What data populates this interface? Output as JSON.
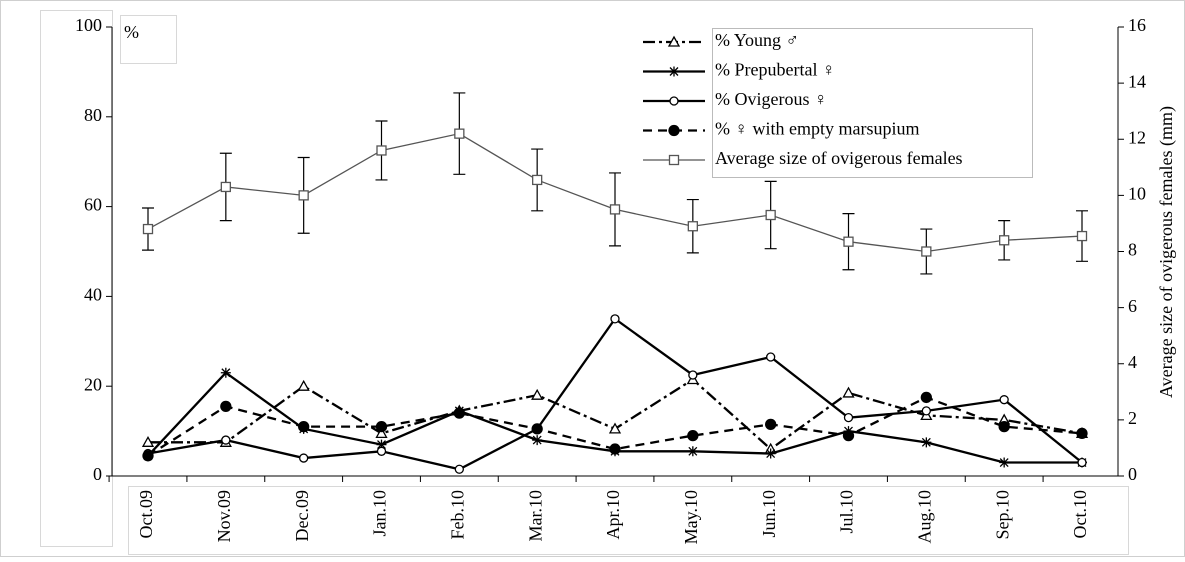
{
  "chart_data": {
    "type": "line",
    "y_label": "%",
    "y2_label": "Average size of ovigerous females  (mm)",
    "categories": [
      "Oct.09",
      "Nov.09",
      "Dec.09",
      "Jan.10",
      "Feb.10",
      "Mar.10",
      "Apr.10",
      "May.10",
      "Jun.10",
      "Jul.10",
      "Aug.10",
      "Sep.10",
      "Oct.10"
    ],
    "ylim": [
      0,
      100
    ],
    "yticks": [
      0,
      20,
      40,
      60,
      80,
      100
    ],
    "y2lim": [
      0,
      16
    ],
    "y2ticks": [
      0,
      2,
      4,
      6,
      8,
      10,
      12,
      14,
      16
    ],
    "series": [
      {
        "name": "% Young ♂",
        "color": "#000000",
        "marker": "triangle",
        "dash": "12 4 3 4",
        "values": [
          7.5,
          7.5,
          20,
          9.5,
          14.5,
          18,
          10.5,
          21.5,
          6,
          18.5,
          13.5,
          12.5,
          9.5
        ]
      },
      {
        "name": "% Prepubertal ♀",
        "color": "#000000",
        "marker": "asterisk",
        "dash": "none",
        "values": [
          4.5,
          23,
          10.5,
          7,
          14.5,
          8,
          5.5,
          5.5,
          5,
          10,
          7.5,
          3,
          3
        ]
      },
      {
        "name": " % Ovigerous ♀",
        "color": "#000000",
        "marker": "circle",
        "dash": "none",
        "values": [
          5,
          8,
          4,
          5.5,
          1.5,
          10.5,
          35,
          22.5,
          26.5,
          13,
          14.5,
          17,
          3
        ]
      },
      {
        "name": "% ♀ with empty marsupium",
        "color": "#000000",
        "marker": "dot",
        "dash": "9 6",
        "values": [
          4.5,
          15.5,
          11,
          11,
          14,
          10.5,
          6,
          9,
          11.5,
          9,
          17.5,
          11,
          9.5
        ]
      },
      {
        "name": "Average size of ovigerous females",
        "color": "#555555",
        "marker": "square",
        "dash": "none",
        "axis": "y2",
        "values": [
          8.8,
          10.3,
          10.0,
          11.6,
          12.2,
          10.55,
          9.5,
          8.9,
          9.3,
          8.35,
          8.0,
          8.4,
          8.55
        ],
        "errors": [
          0.75,
          1.2,
          1.35,
          1.05,
          1.45,
          1.1,
          1.3,
          0.95,
          1.2,
          1.0,
          0.8,
          0.7,
          0.9
        ]
      }
    ]
  }
}
